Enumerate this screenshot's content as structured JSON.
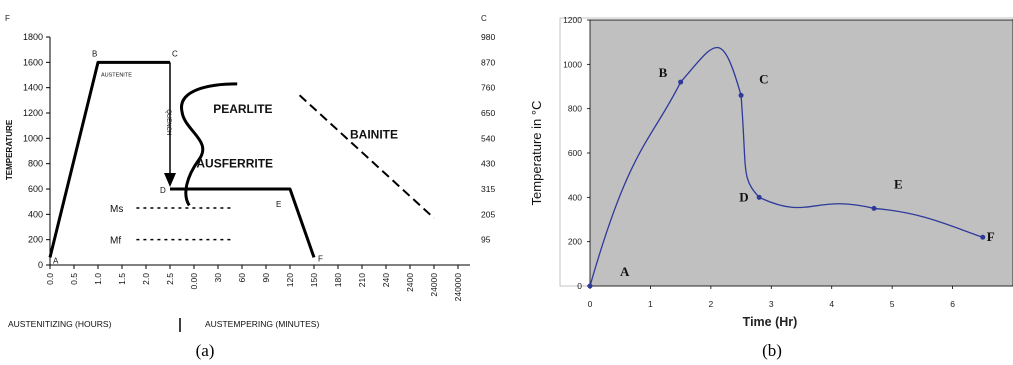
{
  "chart_data": [
    {
      "panel_label": "(a)",
      "type": "line",
      "title": "",
      "ylabel": "TEMPERATURE",
      "y_left_unit": "F",
      "y_right_unit": "C",
      "ylim": [
        0,
        1800
      ],
      "y_ticks": [
        0,
        200,
        400,
        600,
        800,
        1000,
        1200,
        1400,
        1600,
        1800
      ],
      "y_right_ticks": [
        {
          "at": 200,
          "label": "95"
        },
        {
          "at": 400,
          "label": "205"
        },
        {
          "at": 600,
          "label": "315"
        },
        {
          "at": 800,
          "label": "430"
        },
        {
          "at": 1000,
          "label": "540"
        },
        {
          "at": 1200,
          "label": "650"
        },
        {
          "at": 1400,
          "label": "760"
        },
        {
          "at": 1600,
          "label": "870"
        },
        {
          "at": 1800,
          "label": "980"
        }
      ],
      "x_ticks": [
        "0.0",
        "0.5",
        "1.0",
        "1.5",
        "2.0",
        "2.5",
        "0.00",
        "30",
        "60",
        "90",
        "120",
        "150",
        "180",
        "210",
        "240",
        "2400",
        "24000",
        "240000"
      ],
      "xlabel_left": "AUSTENITIZING (HOURS)",
      "xlabel_right": "AUSTEMPERING (MINUTES)",
      "grid": false,
      "process_points": [
        {
          "label": "A",
          "tick_index": 0,
          "y": 60
        },
        {
          "label": "B",
          "tick_index": 2,
          "y": 1600
        },
        {
          "label": "C",
          "tick_index": 5,
          "y": 1600
        },
        {
          "label": "D",
          "tick_index": 5,
          "y": 600
        },
        {
          "label": "E",
          "tick_index": 10,
          "y": 600
        },
        {
          "label": "F",
          "tick_index": 11,
          "y": 60
        }
      ],
      "ms_level": 450,
      "mf_level": 200,
      "annotations": {
        "austenite": "AUSTENITE",
        "quench": "QUENCH",
        "pearlite": "PEARLITE",
        "ausferrite": "AUSFERRITE",
        "bainite": "BAINITE",
        "ms": "Ms",
        "mf": "Mf"
      }
    },
    {
      "panel_label": "(b)",
      "type": "line",
      "title": "",
      "xlabel": "Time  (Hr)",
      "ylabel": "Temperature in °C",
      "xlim": [
        0,
        7
      ],
      "ylim": [
        0,
        1200
      ],
      "x_ticks": [
        0,
        1,
        2,
        3,
        4,
        5,
        6
      ],
      "y_ticks": [
        0,
        200,
        400,
        600,
        800,
        1000,
        1200
      ],
      "grid": false,
      "background": "#c0c0c0",
      "line_color": "#2e3a9a",
      "series": [
        {
          "points": [
            {
              "x": 0,
              "y": 0,
              "label": "A"
            },
            {
              "x": 1.5,
              "y": 920,
              "label": "B"
            },
            {
              "x": 2.5,
              "y": 860,
              "label": "C"
            },
            {
              "x": 2.8,
              "y": 400,
              "label": "D"
            },
            {
              "x": 4.7,
              "y": 350,
              "label": "E"
            },
            {
              "x": 6.5,
              "y": 220,
              "label": "F"
            }
          ]
        }
      ]
    }
  ]
}
